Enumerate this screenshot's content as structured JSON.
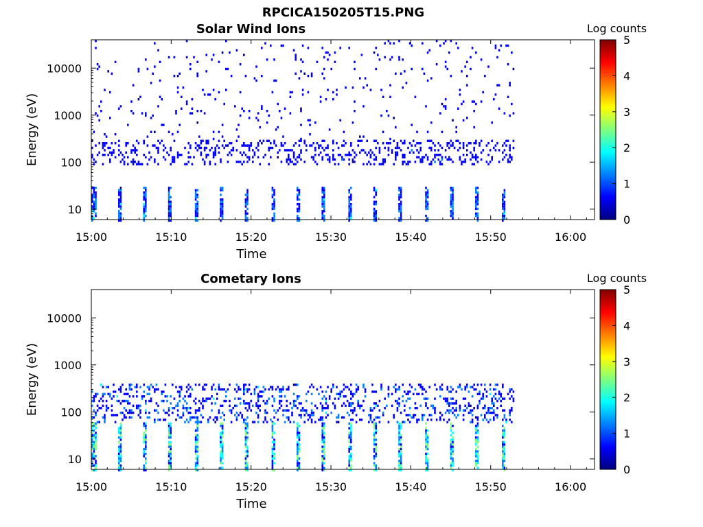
{
  "figure_title": "RPCICA150205T15.PNG",
  "colorscale": [
    "#00007f",
    "#0000ff",
    "#007fff",
    "#00ffff",
    "#7fff7f",
    "#ffff00",
    "#ff7f00",
    "#ff0000",
    "#7f0000"
  ],
  "chart_data": [
    {
      "type": "heatmap",
      "title": "Solar Wind Ions",
      "xlabel": "Time",
      "ylabel": "Energy (eV)",
      "x_ticks": [
        "15:00",
        "15:10",
        "15:20",
        "15:30",
        "15:40",
        "15:50",
        "16:00"
      ],
      "xlim": [
        "15:00",
        "16:03"
      ],
      "y_scale": "log",
      "y_ticks": [
        10,
        100,
        1000,
        10000
      ],
      "y_tick_labels": [
        "10",
        "100",
        "1000",
        "10000"
      ],
      "ylim": [
        6,
        40000
      ],
      "data_time_range": [
        "15:00",
        "15:53"
      ],
      "colorbar": {
        "label": "Log counts",
        "ticks": [
          0,
          1,
          2,
          3,
          4,
          5
        ],
        "range": [
          0,
          5
        ]
      },
      "features": [
        {
          "time_start": "15:00",
          "time_end": "15:53",
          "energy_range": [
            90,
            300
          ],
          "log_counts": [
            0.3,
            1.0
          ],
          "description": "dense band"
        },
        {
          "time_start": "15:00",
          "time_end": "15:53",
          "energy_range": [
            300,
            40000
          ],
          "log_counts": [
            0.3,
            0.8
          ],
          "description": "sparse"
        },
        {
          "time_start": "15:00",
          "time_end": "15:53",
          "energy_range": [
            6,
            30
          ],
          "log_counts": [
            0.3,
            1.6
          ],
          "description": "periodic spikes"
        }
      ]
    },
    {
      "type": "heatmap",
      "title": "Cometary Ions",
      "xlabel": "Time",
      "ylabel": "Energy (eV)",
      "x_ticks": [
        "15:00",
        "15:10",
        "15:20",
        "15:30",
        "15:40",
        "15:50",
        "16:00"
      ],
      "xlim": [
        "15:00",
        "16:03"
      ],
      "y_scale": "log",
      "y_ticks": [
        10,
        100,
        1000,
        10000
      ],
      "y_tick_labels": [
        "10",
        "100",
        "1000",
        "10000"
      ],
      "ylim": [
        6,
        40000
      ],
      "data_time_range": [
        "15:00",
        "15:53"
      ],
      "colorbar": {
        "label": "Log counts",
        "ticks": [
          0,
          1,
          2,
          3,
          4,
          5
        ],
        "range": [
          0,
          5
        ]
      },
      "features": [
        {
          "time_start": "15:00",
          "time_end": "15:53",
          "energy_range": [
            60,
            400
          ],
          "log_counts": [
            0.3,
            1.8
          ],
          "description": "dense band"
        },
        {
          "time_start": "15:00",
          "time_end": "15:53",
          "energy_range": [
            6,
            60
          ],
          "log_counts": [
            0.5,
            2.8
          ],
          "description": "periodic spikes"
        }
      ]
    }
  ]
}
